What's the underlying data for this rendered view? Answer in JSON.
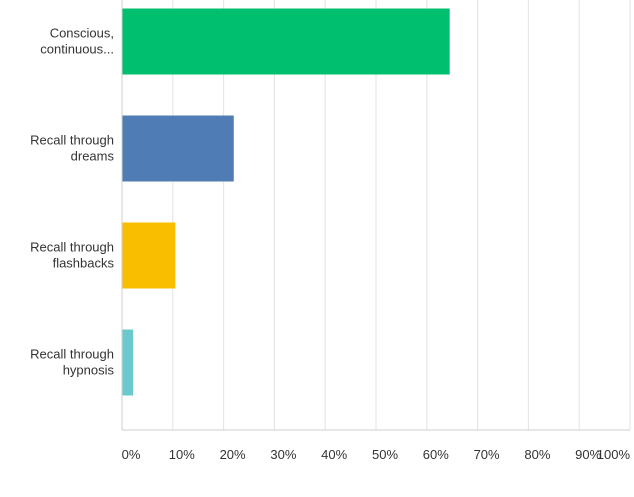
{
  "chart_data": {
    "type": "bar",
    "orientation": "horizontal",
    "categories": [
      [
        "Conscious,",
        "continuous..."
      ],
      [
        "Recall through",
        "dreams"
      ],
      [
        "Recall through",
        "flashbacks"
      ],
      [
        "Recall through",
        "hypnosis"
      ]
    ],
    "values": [
      64.5,
      22,
      10.5,
      2.2
    ],
    "colors": [
      "#00bf6f",
      "#507cb6",
      "#f9be00",
      "#6bc8cd"
    ],
    "xlim": [
      0,
      100
    ],
    "x_ticks": [
      0,
      10,
      20,
      30,
      40,
      50,
      60,
      70,
      80,
      90,
      100
    ],
    "x_tick_labels": [
      "0%",
      "10%",
      "20%",
      "30%",
      "40%",
      "50%",
      "60%",
      "70%",
      "80%",
      "90%",
      "100%"
    ],
    "grid": "vertical",
    "gridline_color": "#e3e3e3",
    "axis_color": "#cfcfcf",
    "legend": "none"
  }
}
